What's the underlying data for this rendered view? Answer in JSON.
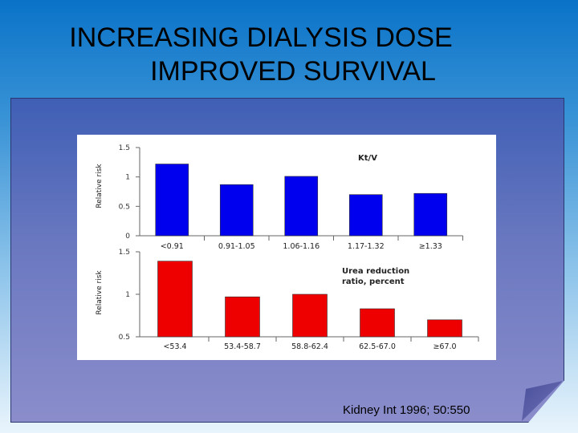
{
  "slide": {
    "title_line1": "INCREASING DIALYSIS DOSE",
    "title_line2": "IMPROVED SURVIVAL",
    "citation": "Kidney Int 1996; 50:550"
  },
  "chart_data": [
    {
      "type": "bar",
      "title": "Kt/V",
      "ylabel": "Relative risk",
      "xlabel": "",
      "categories": [
        "<0.91",
        "0.91-1.05",
        "1.06-1.16",
        "1.17-1.32",
        "≥1.33"
      ],
      "values": [
        1.22,
        0.87,
        1.01,
        0.7,
        0.72
      ],
      "ylim": [
        0,
        1.5
      ],
      "yticks": [
        "0",
        "0.5",
        "1",
        "1.5"
      ],
      "color": "#0000ee"
    },
    {
      "type": "bar",
      "title": "Urea reduction ratio, percent",
      "title_line1": "Urea reduction",
      "title_line2": "ratio, percent",
      "ylabel": "Relative risk",
      "xlabel": "",
      "categories": [
        "<53.4",
        "53.4-58.7",
        "58.8-62.4",
        "62.5-67.0",
        "≥67.0"
      ],
      "values": [
        1.39,
        0.97,
        1.0,
        0.83,
        0.7
      ],
      "ylim": [
        0.5,
        1.5
      ],
      "yticks": [
        "0.5",
        "1",
        "1.5"
      ],
      "color": "#ee0000"
    }
  ]
}
